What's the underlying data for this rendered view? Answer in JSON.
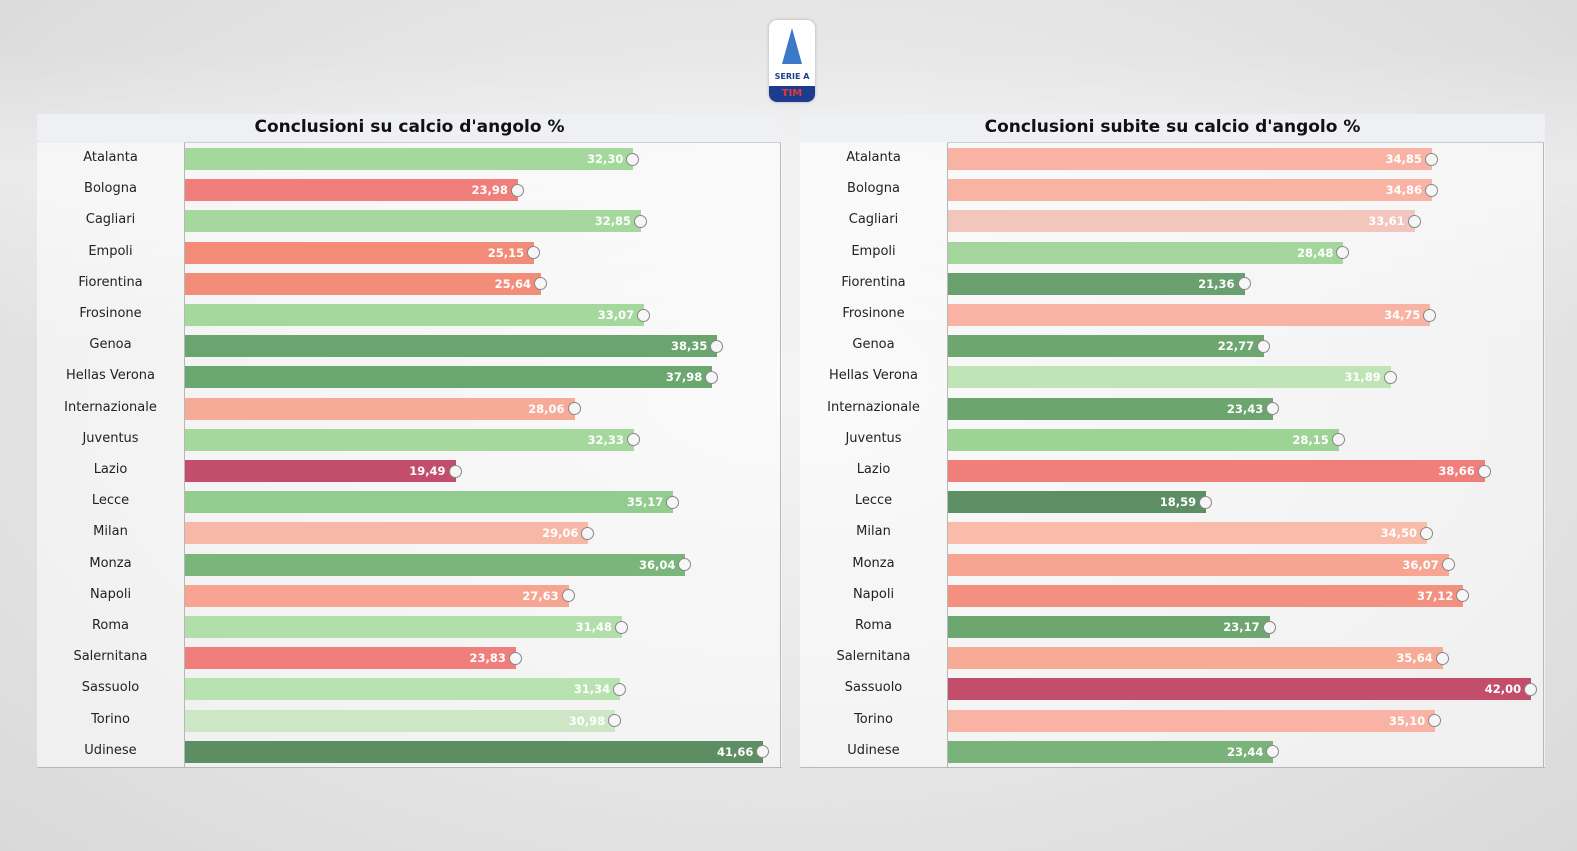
{
  "logo": {
    "text": "SERIE A",
    "band": "TIM"
  },
  "chart_data": [
    {
      "type": "bar",
      "orientation": "horizontal",
      "title": "Conclusioni su calcio d'angolo %",
      "categories": [
        "Atalanta",
        "Bologna",
        "Cagliari",
        "Empoli",
        "Fiorentina",
        "Frosinone",
        "Genoa",
        "Hellas Verona",
        "Internazionale",
        "Juventus",
        "Lazio",
        "Lecce",
        "Milan",
        "Monza",
        "Napoli",
        "Roma",
        "Salernitana",
        "Sassuolo",
        "Torino",
        "Udinese"
      ],
      "values": [
        32.3,
        23.98,
        32.85,
        25.15,
        25.64,
        33.07,
        38.35,
        37.98,
        28.06,
        32.33,
        19.49,
        35.17,
        29.06,
        36.04,
        27.63,
        31.48,
        23.83,
        31.34,
        30.98,
        41.66
      ],
      "labels": [
        "32,30",
        "23,98",
        "32,85",
        "25,15",
        "25,64",
        "33,07",
        "38,35",
        "37,98",
        "28,06",
        "32,33",
        "19,49",
        "35,17",
        "29,06",
        "36,04",
        "27,63",
        "31,48",
        "23,83",
        "31,34",
        "30,98",
        "41,66"
      ],
      "colors": [
        "#a4d89c",
        "#f07e7b",
        "#a4d89c",
        "#f28b78",
        "#f28d7a",
        "#a4d89c",
        "#6aa56f",
        "#6ba870",
        "#f6aa98",
        "#a4d89c",
        "#c24e6b",
        "#93cc8f",
        "#f8b8a7",
        "#7ab67a",
        "#f7a592",
        "#b1dea9",
        "#f07e7b",
        "#b9e2b1",
        "#cde6c5",
        "#5d8d62"
      ],
      "xlim": [
        0,
        43
      ]
    },
    {
      "type": "bar",
      "orientation": "horizontal",
      "title": "Conclusioni subite su calcio d'angolo %",
      "categories": [
        "Atalanta",
        "Bologna",
        "Cagliari",
        "Empoli",
        "Fiorentina",
        "Frosinone",
        "Genoa",
        "Hellas Verona",
        "Internazionale",
        "Juventus",
        "Lazio",
        "Lecce",
        "Milan",
        "Monza",
        "Napoli",
        "Roma",
        "Salernitana",
        "Sassuolo",
        "Torino",
        "Udinese"
      ],
      "values": [
        34.85,
        34.86,
        33.61,
        28.48,
        21.36,
        34.75,
        22.77,
        31.89,
        23.43,
        28.15,
        38.66,
        18.59,
        34.5,
        36.07,
        37.12,
        23.17,
        35.64,
        42.0,
        35.1,
        23.44
      ],
      "labels": [
        "34,85",
        "34,86",
        "33,61",
        "28,48",
        "21,36",
        "34,75",
        "22,77",
        "31,89",
        "23,43",
        "28,15",
        "38,66",
        "18,59",
        "34,50",
        "36,07",
        "37,12",
        "23,17",
        "35,64",
        "42,00",
        "35,10",
        "23,44"
      ],
      "colors": [
        "#f8b3a4",
        "#f8b3a4",
        "#f3c6bd",
        "#a2d69a",
        "#6a9f6f",
        "#f8b3a4",
        "#6ea66f",
        "#bfe4b6",
        "#6da56f",
        "#9dd395",
        "#f07e7b",
        "#5e8f64",
        "#f9bcaa",
        "#f7a592",
        "#f4907f",
        "#6ea66f",
        "#f7ab97",
        "#c24e6b",
        "#f8b3a4",
        "#7ab37a"
      ],
      "xlim": [
        0,
        43
      ]
    }
  ]
}
